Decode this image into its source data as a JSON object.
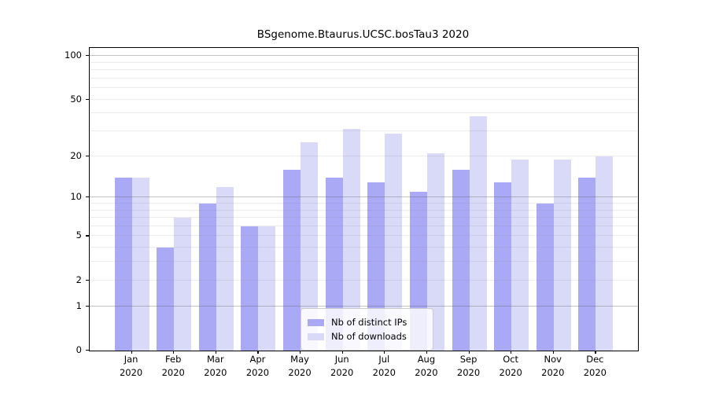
{
  "chart_data": {
    "type": "bar",
    "title": "BSgenome.Btaurus.UCSC.bosTau3 2020",
    "x_categories": [
      "Jan",
      "Feb",
      "Mar",
      "Apr",
      "May",
      "Jun",
      "Jul",
      "Aug",
      "Sep",
      "Oct",
      "Nov",
      "Dec"
    ],
    "x_sublabel": "2020",
    "series": [
      {
        "name": "Nb of distinct IPs",
        "color": "#a9a9f6",
        "values": [
          14,
          4,
          9,
          6,
          16,
          14,
          13,
          11,
          16,
          13,
          9,
          14
        ]
      },
      {
        "name": "Nb of downloads",
        "color": "#d9d9f8",
        "values": [
          14,
          7,
          12,
          6,
          25,
          31,
          29,
          21,
          38,
          19,
          19,
          20
        ]
      }
    ],
    "y_scale": "log1p",
    "y_ticks": [
      0,
      1,
      2,
      5,
      10,
      20,
      50,
      100
    ],
    "y_max": 113.4,
    "major_gridlines": [
      1,
      10,
      100
    ],
    "minor_gridlines": [
      2,
      3,
      4,
      5,
      6,
      7,
      8,
      9,
      20,
      30,
      40,
      50,
      60,
      70,
      80,
      90
    ],
    "legend": {
      "position": "lower center"
    },
    "colors": {
      "major_grid": "rgba(100,100,100,0.38)",
      "minor_grid": "rgba(120,120,120,0.14)",
      "axis": "#000000"
    }
  }
}
